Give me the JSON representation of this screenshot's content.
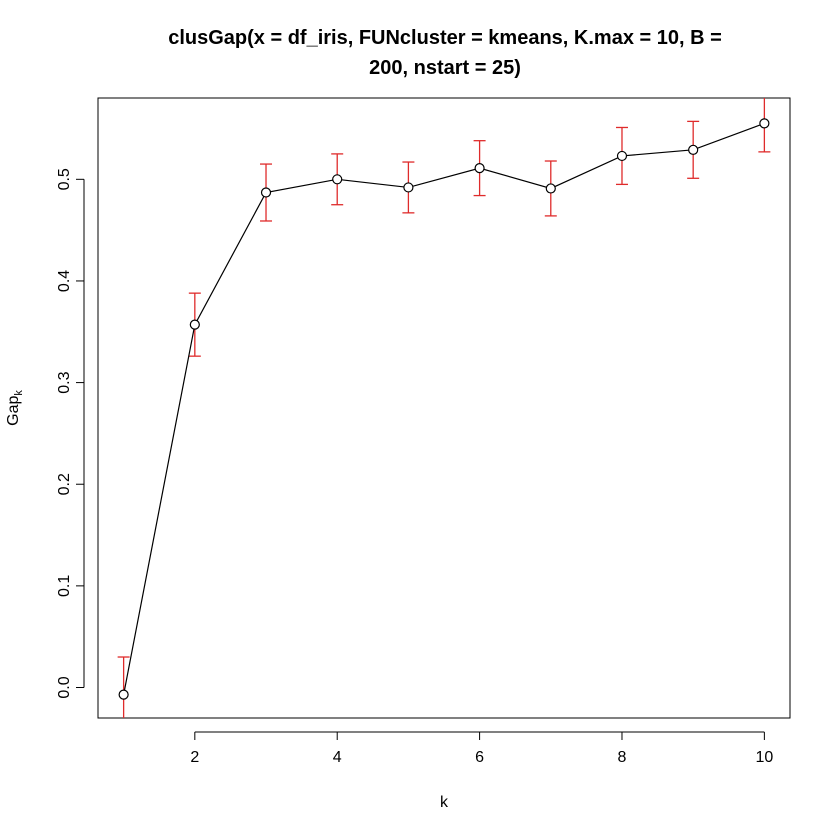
{
  "chart_data": {
    "type": "line",
    "title_line1": "clusGap(x = df_iris, FUNcluster = kmeans, K.max = 10, B =",
    "title_line2": "200, nstart = 25)",
    "xlabel": "k",
    "ylabel_main": "Gap",
    "ylabel_sub": "k",
    "xlim": [
      0.64,
      10.36
    ],
    "ylim": [
      -0.03,
      0.58
    ],
    "x_ticks": [
      2,
      4,
      6,
      8,
      10
    ],
    "x_tick_labels": [
      "2",
      "4",
      "6",
      "8",
      "10"
    ],
    "y_ticks": [
      0.0,
      0.1,
      0.2,
      0.3,
      0.4,
      0.5
    ],
    "y_tick_labels": [
      "0.0",
      "0.1",
      "0.2",
      "0.3",
      "0.4",
      "0.5"
    ],
    "line_color": "#000000",
    "errorbar_color": "#DF2B2B",
    "series": [
      {
        "x": [
          1,
          2,
          3,
          4,
          5,
          6,
          7,
          8,
          9,
          10
        ],
        "y": [
          -0.007,
          0.357,
          0.487,
          0.5,
          0.492,
          0.511,
          0.491,
          0.523,
          0.529,
          0.555
        ],
        "se": [
          0.037,
          0.031,
          0.028,
          0.025,
          0.025,
          0.027,
          0.027,
          0.028,
          0.028,
          0.028
        ]
      }
    ]
  }
}
